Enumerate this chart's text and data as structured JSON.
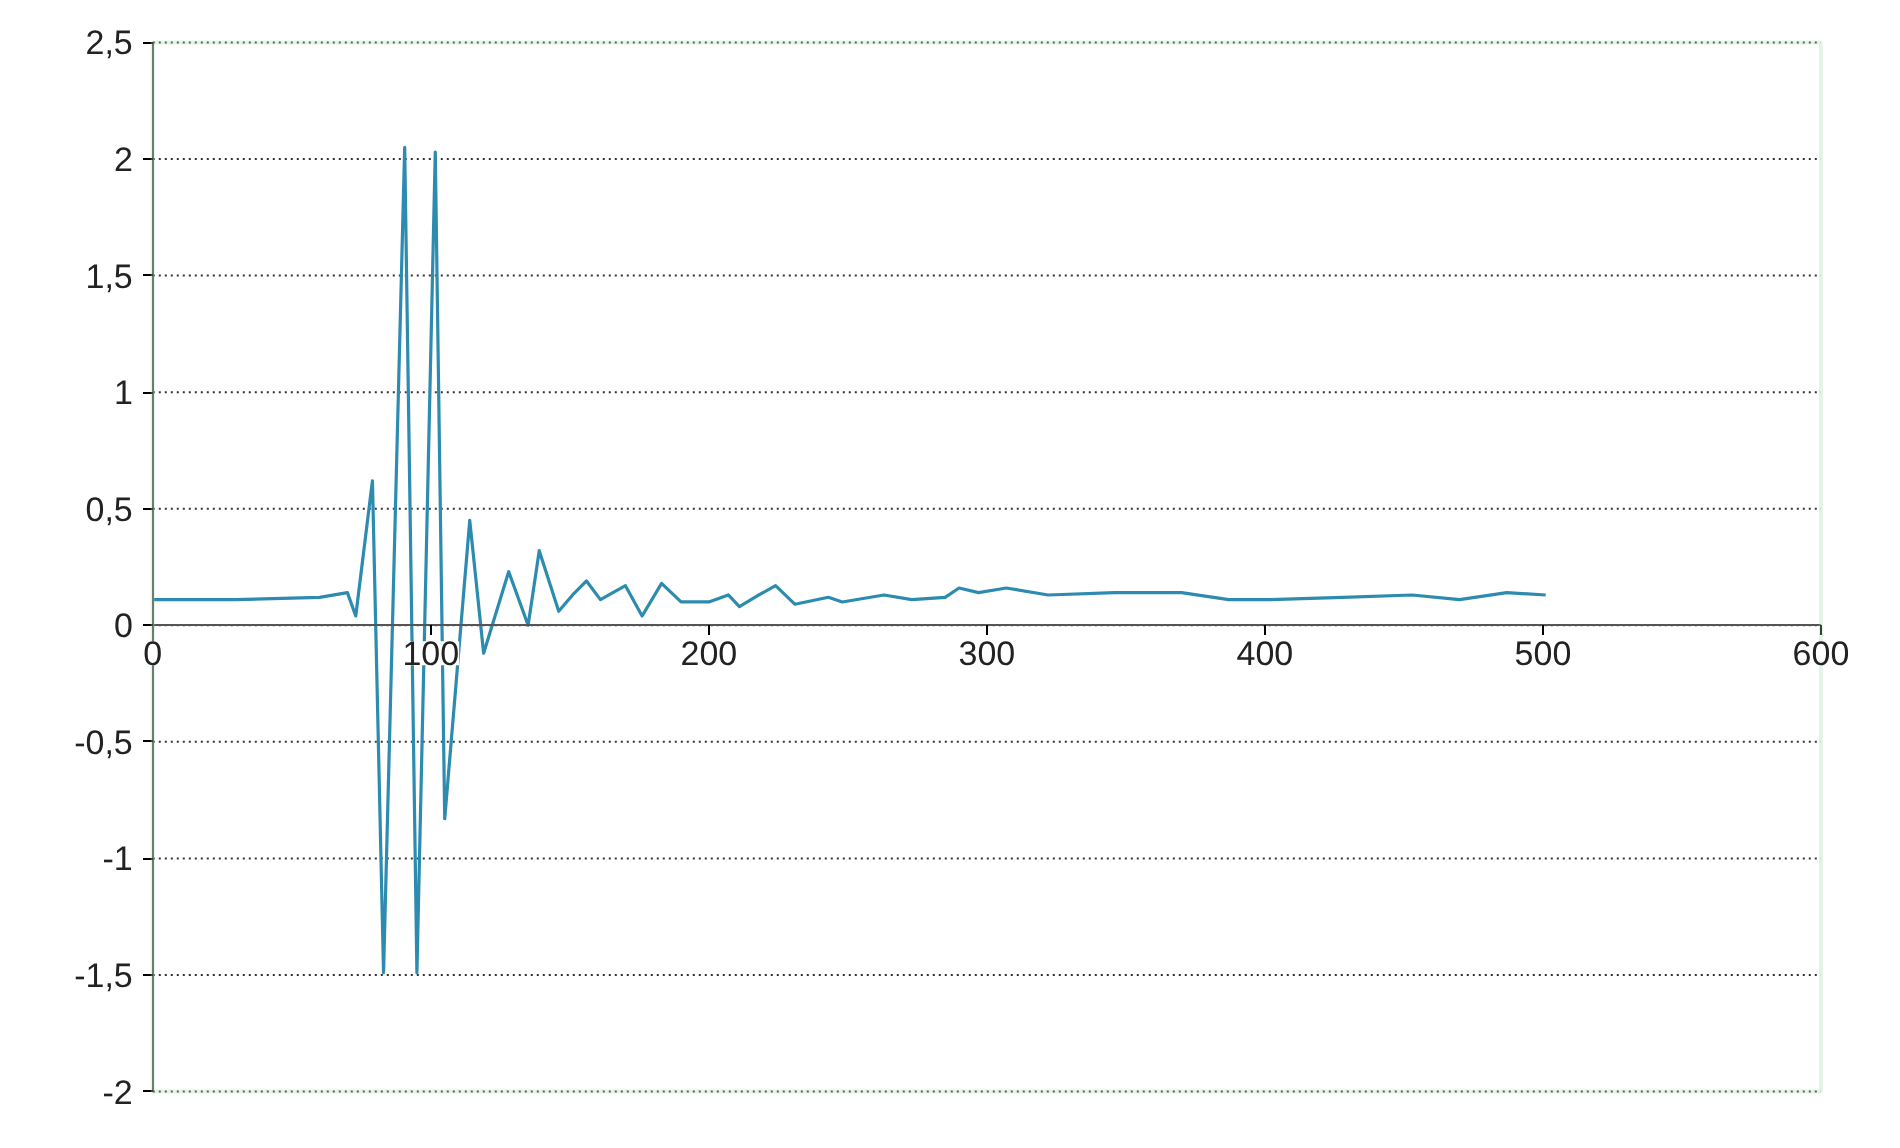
{
  "chart_data": {
    "type": "line",
    "x": [
      0,
      30,
      60,
      70,
      73,
      79,
      83,
      90.6,
      95,
      101.6,
      105,
      114,
      119,
      128,
      135,
      139,
      146,
      151,
      156,
      161,
      170,
      176,
      183,
      190,
      200,
      207,
      211,
      218,
      224,
      231,
      243,
      248,
      263,
      273,
      285,
      290,
      297,
      307,
      322,
      346,
      370,
      387,
      402,
      428,
      453,
      470,
      487,
      501
    ],
    "series": [
      {
        "color": "#2e8bb0",
        "values": [
          0.11,
          0.11,
          0.12,
          0.14,
          0.04,
          0.62,
          -1.49,
          2.05,
          -1.49,
          2.03,
          -0.83,
          0.45,
          -0.12,
          0.23,
          0.0,
          0.32,
          0.06,
          0.13,
          0.19,
          0.11,
          0.17,
          0.04,
          0.18,
          0.1,
          0.1,
          0.13,
          0.08,
          0.13,
          0.17,
          0.09,
          0.12,
          0.1,
          0.13,
          0.11,
          0.12,
          0.16,
          0.14,
          0.16,
          0.13,
          0.14,
          0.14,
          0.11,
          0.11,
          0.12,
          0.13,
          0.11,
          0.14,
          0.13
        ]
      }
    ],
    "xlim": [
      0,
      600
    ],
    "xticks": [
      0,
      100,
      200,
      300,
      400,
      500,
      600
    ],
    "ylim": [
      -2,
      2.5
    ],
    "yticks": [
      {
        "value": -2,
        "label": "-2"
      },
      {
        "value": -1.5,
        "label": "-1,5"
      },
      {
        "value": -1,
        "label": "-1"
      },
      {
        "value": -0.5,
        "label": "-0,5"
      },
      {
        "value": 0,
        "label": "0"
      },
      {
        "value": 0.5,
        "label": "0,5"
      },
      {
        "value": 1,
        "label": "1"
      },
      {
        "value": 1.5,
        "label": "1,5"
      },
      {
        "value": 2,
        "label": "2"
      },
      {
        "value": 2.5,
        "label": "2,5"
      }
    ],
    "grid": "y",
    "line_style": "solid"
  }
}
